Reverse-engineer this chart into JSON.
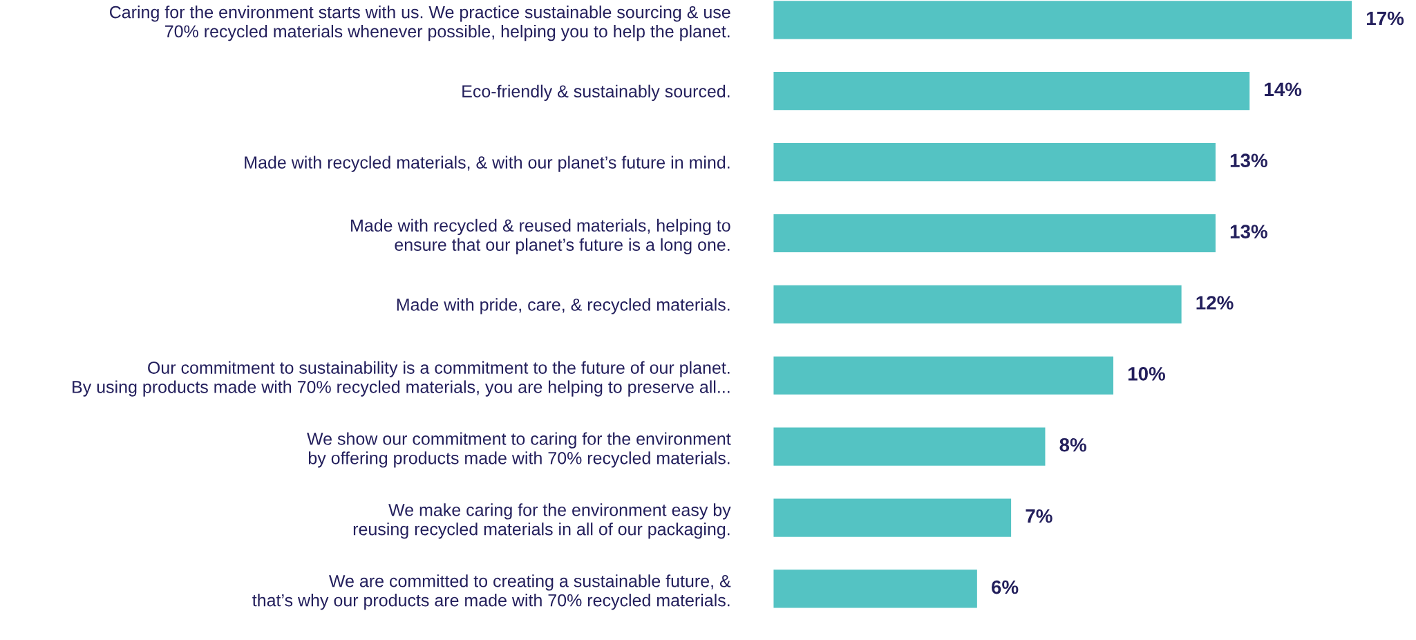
{
  "chart_data": {
    "type": "bar",
    "orientation": "horizontal",
    "categories": [
      "Caring for the environment starts with us. We practice sustainable sourcing & use\n70% recycled materials whenever possible, helping you to help the planet.",
      "Eco-friendly & sustainably sourced.",
      "Made with recycled materials, & with our planet’s future in mind.",
      "Made with recycled & reused materials, helping to\nensure that our planet’s future is a long one.",
      "Made with pride, care, & recycled materials.",
      "Our commitment to sustainability is a commitment to the future of our planet.\nBy using products made with 70% recycled materials, you are helping to preserve all...",
      "We show our commitment to caring for the environment\nby offering products made with 70% recycled materials.",
      "We make caring for the environment easy by\nreusing recycled materials in all of our packaging.",
      "We are committed to creating a sustainable future, &\nthat’s why our products are made with 70% recycled materials."
    ],
    "values": [
      17,
      14,
      13,
      13,
      12,
      10,
      8,
      7,
      6
    ],
    "value_labels": [
      "17%",
      "14%",
      "13%",
      "13%",
      "12%",
      "10%",
      "8%",
      "7%",
      "6%"
    ],
    "color": "#54c3c3",
    "grid": false
  }
}
